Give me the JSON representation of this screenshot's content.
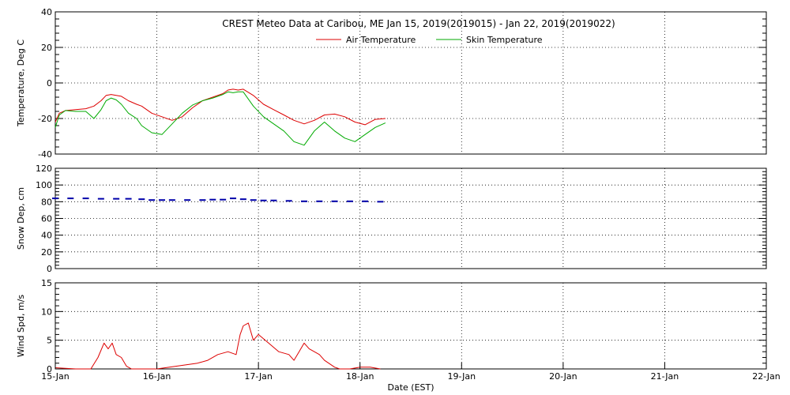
{
  "chart_data": {
    "title": "CREST Meteo Data at Caribou, ME   Jan 15, 2019(2019015) - Jan 22, 2019(2019022)",
    "xlabel": "Date (EST)",
    "x_ticks": [
      "15-Jan",
      "16-Jan",
      "17-Jan",
      "18-Jan",
      "19-Jan",
      "20-Jan",
      "21-Jan",
      "22-Jan"
    ],
    "xlim_days": [
      0,
      7
    ],
    "grid": true,
    "panels": [
      {
        "type": "line",
        "ylabel": "Temperature, Deg C",
        "ylim": [
          -40,
          40
        ],
        "yticks": [
          "-40",
          "-20",
          "0",
          "20",
          "40"
        ],
        "legend_position": "top-center",
        "series": [
          {
            "name": "Air Temperature",
            "color": "#dd0000",
            "x": [
              0,
              0.04,
              0.1,
              0.2,
              0.3,
              0.38,
              0.45,
              0.5,
              0.55,
              0.6,
              0.65,
              0.72,
              0.8,
              0.85,
              0.95,
              1.05,
              1.15,
              1.25,
              1.35,
              1.45,
              1.55,
              1.65,
              1.7,
              1.75,
              1.8,
              1.85,
              1.95,
              2.05,
              2.15,
              2.25,
              2.35,
              2.45,
              2.55,
              2.65,
              2.75,
              2.85,
              2.95,
              3.05,
              3.15,
              3.25
            ],
            "y": [
              -22,
              -17,
              -15.5,
              -15,
              -14.5,
              -13,
              -10,
              -7,
              -6.5,
              -7,
              -7.5,
              -10,
              -12,
              -13,
              -17,
              -19,
              -21,
              -19,
              -14,
              -10,
              -8,
              -6,
              -4,
              -3.5,
              -4,
              -3.5,
              -7,
              -12,
              -15,
              -18,
              -21,
              -23,
              -21,
              -18,
              -17.5,
              -19,
              -22,
              -23.5,
              -20.5,
              -20
            ]
          },
          {
            "name": "Skin Temperature",
            "color": "#00aa00",
            "x": [
              0,
              0.04,
              0.1,
              0.2,
              0.3,
              0.38,
              0.45,
              0.5,
              0.55,
              0.6,
              0.65,
              0.72,
              0.8,
              0.85,
              0.95,
              1.05,
              1.15,
              1.25,
              1.35,
              1.45,
              1.55,
              1.65,
              1.7,
              1.75,
              1.8,
              1.85,
              1.95,
              2.05,
              2.15,
              2.25,
              2.35,
              2.45,
              2.55,
              2.65,
              2.75,
              2.85,
              2.95,
              3.05,
              3.15,
              3.25
            ],
            "y": [
              -25,
              -18,
              -15.5,
              -16,
              -16,
              -20,
              -15,
              -10,
              -8.5,
              -9.5,
              -12,
              -17,
              -20,
              -24,
              -28,
              -29,
              -23,
              -17,
              -12.5,
              -10,
              -8.5,
              -6.5,
              -5,
              -5.5,
              -5,
              -5,
              -13,
              -19,
              -23,
              -27,
              -33,
              -35,
              -27,
              -22,
              -27,
              -31,
              -33,
              -29,
              -25,
              -22.5
            ]
          }
        ]
      },
      {
        "type": "scatter",
        "ylabel": "Snow Dep, cm",
        "ylim": [
          0,
          120
        ],
        "yticks": [
          "0",
          "20",
          "40",
          "60",
          "80",
          "100",
          "120"
        ],
        "series": [
          {
            "color": "#0000aa",
            "x": [
              0,
              0.15,
              0.3,
              0.45,
              0.6,
              0.72,
              0.85,
              0.95,
              1.05,
              1.15,
              1.3,
              1.45,
              1.55,
              1.65,
              1.75,
              1.85,
              1.95,
              2.05,
              2.15,
              2.3,
              2.45,
              2.6,
              2.75,
              2.9,
              3.05,
              3.2
            ],
            "y": [
              84,
              84,
              84,
              83.5,
              83.5,
              83.5,
              83,
              82,
              82,
              82,
              82,
              82,
              82.5,
              82.5,
              84,
              83,
              82,
              81.5,
              81.5,
              81,
              80.5,
              80.5,
              80.5,
              80.5,
              80.5,
              80
            ]
          }
        ]
      },
      {
        "type": "line",
        "ylabel": "Wind Spd, m/s",
        "ylim": [
          0,
          15
        ],
        "yticks": [
          "0",
          "5",
          "10",
          "15"
        ],
        "series": [
          {
            "color": "#dd0000",
            "x": [
              0,
              0.2,
              0.35,
              0.42,
              0.48,
              0.52,
              0.56,
              0.6,
              0.65,
              0.7,
              0.75,
              0.8,
              1.0,
              1.2,
              1.4,
              1.5,
              1.6,
              1.7,
              1.78,
              1.82,
              1.85,
              1.9,
              1.95,
              2.0,
              2.1,
              2.2,
              2.3,
              2.35,
              2.4,
              2.45,
              2.5,
              2.55,
              2.6,
              2.65,
              2.75,
              2.8,
              2.9,
              3.0,
              3.1,
              3.2
            ],
            "y": [
              0.2,
              0,
              0,
              2,
              4.5,
              3.5,
              4.5,
              2.5,
              2,
              0.5,
              0,
              0,
              0,
              0.5,
              1,
              1.5,
              2.5,
              3,
              2.5,
              6,
              7.5,
              8,
              5,
              6,
              4.5,
              3,
              2.5,
              1.5,
              3,
              4.5,
              3.5,
              3,
              2.5,
              1.5,
              0.3,
              0,
              0,
              0.3,
              0.3,
              0
            ]
          }
        ]
      }
    ]
  }
}
